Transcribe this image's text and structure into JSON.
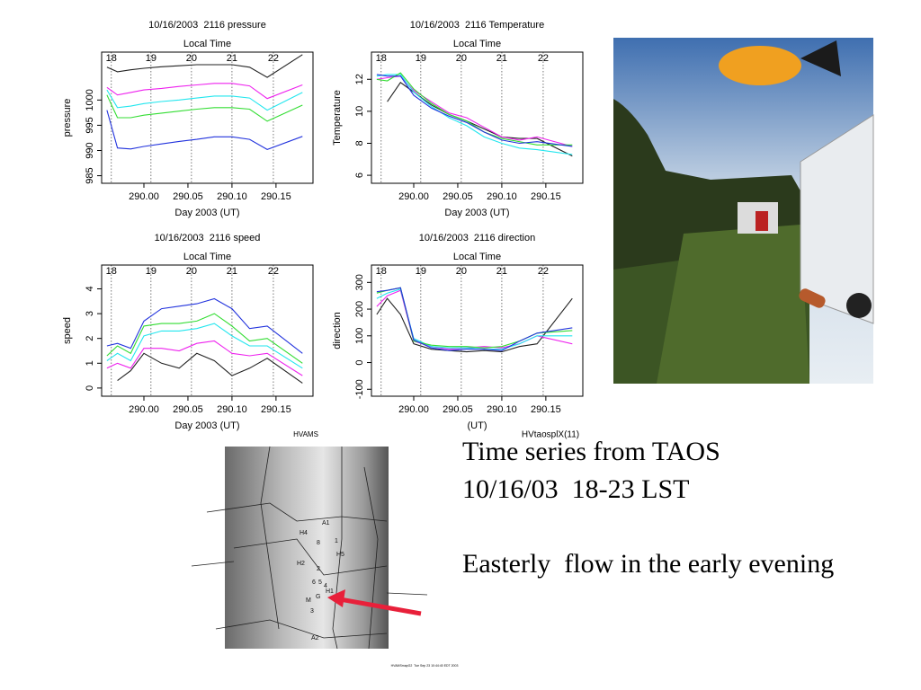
{
  "chart_data": [
    {
      "type": "line",
      "title": "10/16/2003  2116 pressure",
      "top_xlabel": "Local Time",
      "xlabel": "Day 2003 (UT)",
      "ylabel": "pressure",
      "x": [
        289.958,
        289.97,
        289.985,
        290.0,
        290.02,
        290.04,
        290.06,
        290.08,
        290.1,
        290.12,
        290.14,
        290.18
      ],
      "xlim": [
        289.952,
        290.192
      ],
      "ylim": [
        983.5,
        1009.5
      ],
      "xticks": [
        {
          "value": 290.0,
          "label": "290.00"
        },
        {
          "value": 290.05,
          "label": "290.05"
        },
        {
          "value": 290.1,
          "label": "290.10"
        },
        {
          "value": 290.15,
          "label": "290.15"
        }
      ],
      "yticks": [
        985,
        990,
        995,
        1000
      ],
      "top_xticks": [
        {
          "value": 289.963,
          "label": "18"
        },
        {
          "value": 290.008,
          "label": "19"
        },
        {
          "value": 290.054,
          "label": "20"
        },
        {
          "value": 290.1,
          "label": "21"
        },
        {
          "value": 290.147,
          "label": "22"
        }
      ],
      "series": [
        {
          "color": "#222222",
          "values": [
            1006.5,
            1005.6,
            1006,
            1006.3,
            1006.6,
            1006.8,
            1007,
            1007,
            1007,
            1006.5,
            1004.5,
            1009
          ]
        },
        {
          "color": "#ee22ee",
          "values": [
            1002.5,
            1001,
            1001.5,
            1002,
            1002.3,
            1002.7,
            1003,
            1003.3,
            1003.3,
            1002.8,
            1000.3,
            1003
          ]
        },
        {
          "color": "#22e6ee",
          "values": [
            1002,
            998.5,
            998.8,
            999.3,
            999.7,
            1000,
            1000.4,
            1000.8,
            1000.8,
            1000.4,
            998,
            1001.5
          ]
        },
        {
          "color": "#33dd33",
          "values": [
            1001,
            996.5,
            996.5,
            997,
            997.4,
            997.8,
            998.2,
            998.5,
            998.5,
            998.2,
            995.8,
            999
          ]
        },
        {
          "color": "#2233dd",
          "values": [
            998,
            990.5,
            990.3,
            990.8,
            991.3,
            991.8,
            992.2,
            992.7,
            992.7,
            992.2,
            990.2,
            992.8
          ]
        }
      ]
    },
    {
      "type": "line",
      "title": "10/16/2003  2116 Temperature",
      "top_xlabel": "Local Time",
      "xlabel": "Day 2003 (UT)",
      "ylabel": "Temperature",
      "x": [
        289.958,
        289.97,
        289.985,
        290.0,
        290.02,
        290.04,
        290.06,
        290.08,
        290.1,
        290.12,
        290.14,
        290.18
      ],
      "xlim": [
        289.952,
        290.192
      ],
      "ylim": [
        5.5,
        13.7
      ],
      "xticks": [
        {
          "value": 290.0,
          "label": "290.00"
        },
        {
          "value": 290.05,
          "label": "290.05"
        },
        {
          "value": 290.1,
          "label": "290.10"
        },
        {
          "value": 290.15,
          "label": "290.15"
        }
      ],
      "yticks": [
        6,
        8,
        10,
        12
      ],
      "top_xticks": [
        {
          "value": 289.963,
          "label": "18"
        },
        {
          "value": 290.008,
          "label": "19"
        },
        {
          "value": 290.054,
          "label": "20"
        },
        {
          "value": 290.1,
          "label": "21"
        },
        {
          "value": 290.147,
          "label": "22"
        }
      ],
      "series": [
        {
          "color": "#222222",
          "values": [
            null,
            10.6,
            11.8,
            11.2,
            10.4,
            9.8,
            9.4,
            8.9,
            8.4,
            8.3,
            8.3,
            7.2
          ]
        },
        {
          "color": "#ee22ee",
          "values": [
            12,
            12.1,
            12.2,
            11.3,
            10.6,
            9.9,
            9.6,
            9.0,
            8.4,
            8.2,
            8.4,
            7.8
          ]
        },
        {
          "color": "#22e6ee",
          "values": [
            12.2,
            12.3,
            12.3,
            11.2,
            10.3,
            9.6,
            9.1,
            8.4,
            8.0,
            7.7,
            7.6,
            7.3
          ]
        },
        {
          "color": "#33dd33",
          "values": [
            12,
            11.9,
            12.4,
            11.4,
            10.5,
            9.8,
            9.4,
            8.7,
            8.3,
            8.1,
            7.9,
            7.9
          ]
        },
        {
          "color": "#2233dd",
          "values": [
            12.3,
            12.2,
            12.2,
            11.0,
            10.2,
            9.7,
            9.3,
            8.7,
            8.2,
            8.0,
            8.1,
            7.8
          ]
        }
      ]
    },
    {
      "type": "line",
      "title": "10/16/2003  2116 speed",
      "top_xlabel": "Local Time",
      "xlabel": "Day 2003 (UT)",
      "ylabel": "speed",
      "x": [
        289.958,
        289.97,
        289.985,
        290.0,
        290.02,
        290.04,
        290.06,
        290.08,
        290.1,
        290.12,
        290.14,
        290.18
      ],
      "xlim": [
        289.952,
        290.192
      ],
      "ylim": [
        -0.33,
        4.96
      ],
      "xticks": [
        {
          "value": 290.0,
          "label": "290.00"
        },
        {
          "value": 290.05,
          "label": "290.05"
        },
        {
          "value": 290.1,
          "label": "290.10"
        },
        {
          "value": 290.15,
          "label": "290.15"
        }
      ],
      "yticks": [
        0,
        1,
        2,
        3,
        4
      ],
      "top_xticks": [
        {
          "value": 289.963,
          "label": "18"
        },
        {
          "value": 290.008,
          "label": "19"
        },
        {
          "value": 290.054,
          "label": "20"
        },
        {
          "value": 290.1,
          "label": "21"
        },
        {
          "value": 290.147,
          "label": "22"
        }
      ],
      "series": [
        {
          "color": "#222222",
          "values": [
            null,
            0.3,
            0.7,
            1.4,
            1.0,
            0.8,
            1.4,
            1.1,
            0.5,
            0.8,
            1.2,
            0.2
          ]
        },
        {
          "color": "#ee22ee",
          "values": [
            0.8,
            1.0,
            0.8,
            1.6,
            1.6,
            1.5,
            1.8,
            1.9,
            1.4,
            1.3,
            1.4,
            0.5
          ]
        },
        {
          "color": "#22e6ee",
          "values": [
            1.1,
            1.4,
            1.1,
            2.1,
            2.3,
            2.3,
            2.4,
            2.6,
            2.1,
            1.7,
            1.7,
            0.8
          ]
        },
        {
          "color": "#33dd33",
          "values": [
            1.3,
            1.7,
            1.4,
            2.5,
            2.6,
            2.6,
            2.7,
            3.0,
            2.5,
            1.9,
            2.0,
            1.0
          ]
        },
        {
          "color": "#2233dd",
          "values": [
            1.7,
            1.8,
            1.6,
            2.7,
            3.2,
            3.3,
            3.4,
            3.6,
            3.2,
            2.4,
            2.5,
            1.4
          ]
        }
      ]
    },
    {
      "type": "line",
      "title": "10/16/2003  2116 direction",
      "top_xlabel": "Local Time",
      "xlabel": "(UT)",
      "ylabel": "direction",
      "x": [
        289.958,
        289.97,
        289.985,
        290.0,
        290.02,
        290.04,
        290.06,
        290.08,
        290.1,
        290.12,
        290.14,
        290.18
      ],
      "xlim": [
        289.952,
        290.192
      ],
      "ylim": [
        -126,
        365
      ],
      "xticks": [
        {
          "value": 290.0,
          "label": "290.00"
        },
        {
          "value": 290.05,
          "label": "290.05"
        },
        {
          "value": 290.1,
          "label": "290.10"
        },
        {
          "value": 290.15,
          "label": "290.15"
        }
      ],
      "yticks": [
        -100,
        0,
        100,
        200,
        300
      ],
      "top_xticks": [
        {
          "value": 289.963,
          "label": "18"
        },
        {
          "value": 290.008,
          "label": "19"
        },
        {
          "value": 290.054,
          "label": "20"
        },
        {
          "value": 290.1,
          "label": "21"
        },
        {
          "value": 290.147,
          "label": "22"
        }
      ],
      "series": [
        {
          "color": "#222222",
          "values": [
            180,
            240,
            180,
            70,
            50,
            45,
            40,
            45,
            40,
            60,
            70,
            240
          ]
        },
        {
          "color": "#ee22ee",
          "values": [
            210,
            250,
            270,
            80,
            60,
            50,
            55,
            60,
            55,
            70,
            100,
            70
          ]
        },
        {
          "color": "#22e6ee",
          "values": [
            240,
            260,
            275,
            90,
            60,
            55,
            55,
            50,
            50,
            70,
            100,
            100
          ]
        },
        {
          "color": "#33dd33",
          "values": [
            260,
            270,
            280,
            80,
            65,
            60,
            60,
            55,
            60,
            80,
            110,
            120
          ]
        },
        {
          "color": "#2233dd",
          "values": [
            265,
            270,
            280,
            85,
            55,
            45,
            50,
            50,
            45,
            80,
            110,
            130
          ]
        }
      ]
    }
  ],
  "slide": {
    "plot_id": "HVtaosplX(11)",
    "text_lines": [
      "Time series from TAOS",
      "10/16/03  18-23 LST",
      "Easterly  flow in the early evening"
    ],
    "map": {
      "title": "HVAMS",
      "footer": "HVAMSmapG2  Tue Sep 23 10:44:40 EDT 2003",
      "labels": [
        "A1",
        "H4",
        "8",
        "1",
        "H5",
        "H2",
        "2",
        "6",
        "5",
        "4",
        "H1",
        "G",
        "M",
        "3",
        "A2"
      ]
    }
  }
}
